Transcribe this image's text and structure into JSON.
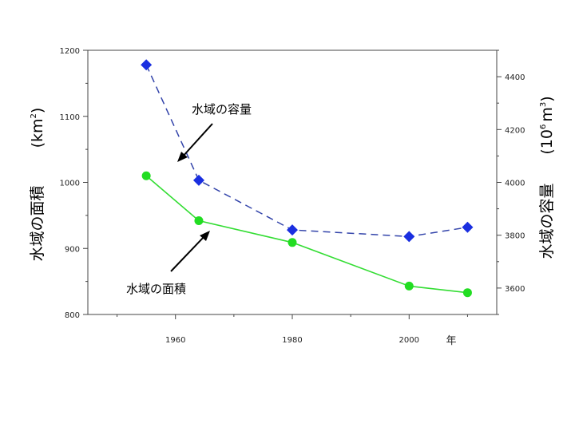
{
  "chart_data": {
    "type": "line",
    "x": [
      1955,
      1964,
      1980,
      2000,
      2010
    ],
    "x_ticks": [
      "1960",
      "1980",
      "2000"
    ],
    "x_unit_label": "年",
    "xlim": [
      1945,
      2015
    ],
    "series": [
      {
        "name": "水域の容量",
        "axis": "right",
        "style": "dashed",
        "marker": "diamond",
        "color": "#1a2fe0",
        "line_color": "#3344aa",
        "values": [
          4445,
          4008,
          3820,
          3795,
          3830
        ]
      },
      {
        "name": "水域の面積",
        "axis": "left",
        "style": "solid",
        "marker": "circle",
        "color": "#22dd22",
        "line_color": "#33dd33",
        "values": [
          1010,
          942,
          909,
          843,
          833
        ]
      }
    ],
    "left_axis": {
      "label": "水域の面積",
      "unit_open": "(",
      "unit_base": "km",
      "unit_sup": "2",
      "unit_close": ")",
      "ylim": [
        800,
        1200
      ],
      "ticks": [
        "800",
        "900",
        "1000",
        "1100",
        "1200"
      ]
    },
    "right_axis": {
      "label": "水域の容量",
      "unit_open": "(",
      "unit_base": "10",
      "unit_sup1": "6",
      "unit_mid": "m",
      "unit_sup2": "3",
      "unit_close": ")",
      "ylim": [
        3500,
        4500
      ],
      "ticks": [
        "3600",
        "3800",
        "4000",
        "4200",
        "4400"
      ]
    },
    "annotations": [
      {
        "text": "水域の容量"
      },
      {
        "text": "水域の面積"
      }
    ],
    "grid": false
  }
}
